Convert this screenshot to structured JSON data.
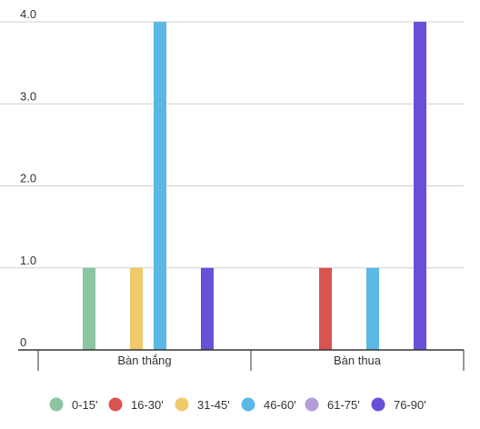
{
  "chart_data": {
    "type": "bar",
    "categories": [
      "Bàn thắng",
      "Bàn thua"
    ],
    "series": [
      {
        "name": "0-15'",
        "color": "#8cc5a2",
        "values": [
          1,
          0
        ]
      },
      {
        "name": "16-30'",
        "color": "#d9534f",
        "values": [
          0,
          1
        ]
      },
      {
        "name": "31-45'",
        "color": "#f0c96a",
        "values": [
          1,
          0
        ]
      },
      {
        "name": "46-60'",
        "color": "#5bb8e5",
        "values": [
          4,
          1
        ]
      },
      {
        "name": "61-75'",
        "color": "#b39ddb",
        "values": [
          0,
          0
        ]
      },
      {
        "name": "76-90'",
        "color": "#6a4fd8",
        "values": [
          1,
          4
        ]
      }
    ],
    "y_ticks": [
      "0",
      "1.0",
      "2.0",
      "3.0",
      "4.0"
    ],
    "ylim": [
      0,
      4
    ],
    "grid": true,
    "legend_position": "bottom",
    "title": "",
    "xlabel": "",
    "ylabel": ""
  }
}
